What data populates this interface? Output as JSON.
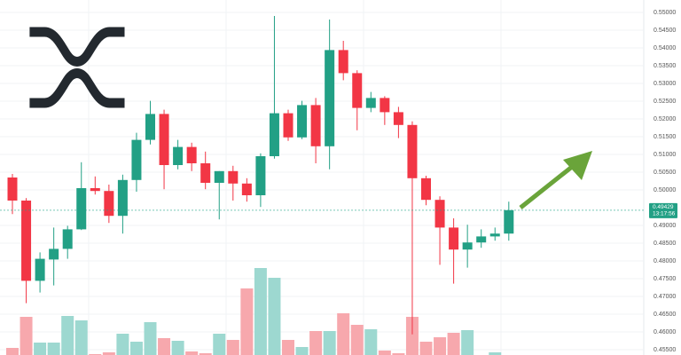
{
  "chart_data": {
    "type": "candlestick",
    "open": [
      0.5035,
      0.497,
      0.4744,
      0.4804,
      0.4834,
      0.4889,
      0.5005,
      0.4997,
      0.4927,
      0.5028,
      0.5141,
      0.5214,
      0.507,
      0.5121,
      0.5075,
      0.502,
      0.5053,
      0.5018,
      0.4985,
      0.5095,
      0.5216,
      0.5148,
      0.5239,
      0.5123,
      0.5394,
      0.5329,
      0.5231,
      0.5259,
      0.5219,
      0.5183,
      0.5033,
      0.4972,
      0.4894,
      0.4832,
      0.4852,
      0.4869,
      0.4877
    ],
    "high": [
      0.5045,
      0.4977,
      0.4824,
      0.4894,
      0.4899,
      0.5078,
      0.5038,
      0.5015,
      0.5043,
      0.5161,
      0.5251,
      0.5226,
      0.5141,
      0.5133,
      0.5108,
      0.5053,
      0.5068,
      0.5033,
      0.5103,
      0.549,
      0.5226,
      0.5251,
      0.5259,
      0.548,
      0.542,
      0.5337,
      0.5276,
      0.5264,
      0.5234,
      0.5193,
      0.504,
      0.4982,
      0.492,
      0.4902,
      0.4889,
      0.4894,
      0.4967
    ],
    "low": [
      0.4932,
      0.4681,
      0.4711,
      0.4731,
      0.4806,
      0.4887,
      0.4987,
      0.4907,
      0.4877,
      0.4995,
      0.5128,
      0.5002,
      0.5058,
      0.5053,
      0.5002,
      0.4917,
      0.497,
      0.4967,
      0.4952,
      0.5088,
      0.5138,
      0.5143,
      0.5075,
      0.5058,
      0.5309,
      0.5168,
      0.5219,
      0.5183,
      0.5146,
      0.4593,
      0.4957,
      0.4789,
      0.4736,
      0.4781,
      0.4837,
      0.4857,
      0.4857
    ],
    "close": [
      0.497,
      0.4744,
      0.4806,
      0.4834,
      0.4889,
      0.5005,
      0.4997,
      0.4927,
      0.5028,
      0.5141,
      0.5214,
      0.507,
      0.5121,
      0.5075,
      0.502,
      0.5053,
      0.5018,
      0.4985,
      0.5095,
      0.5216,
      0.5148,
      0.5239,
      0.5123,
      0.5394,
      0.5329,
      0.5231,
      0.5259,
      0.5219,
      0.5183,
      0.5033,
      0.4972,
      0.4894,
      0.4832,
      0.4852,
      0.4869,
      0.4877,
      0.4943
    ],
    "volume": [
      8,
      43,
      14,
      14,
      44,
      39,
      1,
      3,
      24,
      15,
      37,
      19,
      16,
      4,
      2,
      24,
      17,
      75,
      98,
      87,
      17,
      9,
      27,
      27,
      47,
      34,
      29,
      5,
      2,
      43,
      15,
      20,
      25,
      28,
      0,
      3,
      0
    ],
    "up_color": "#22a085",
    "down_color": "#f23645",
    "volume_up_color": "#9dd8d0",
    "volume_down_color": "#f7a8ad",
    "ylim": [
      0.4535,
      0.5535
    ],
    "yticks": [
      {
        "value": 0.55,
        "label": "0.55000"
      },
      {
        "value": 0.545,
        "label": "0.54500"
      },
      {
        "value": 0.54,
        "label": "0.54000"
      },
      {
        "value": 0.535,
        "label": "0.53500"
      },
      {
        "value": 0.53,
        "label": "0.53000"
      },
      {
        "value": 0.525,
        "label": "0.52500"
      },
      {
        "value": 0.52,
        "label": "0.52000"
      },
      {
        "value": 0.515,
        "label": "0.51500"
      },
      {
        "value": 0.51,
        "label": "0.51000"
      },
      {
        "value": 0.505,
        "label": "0.50500"
      },
      {
        "value": 0.5,
        "label": "0.50000"
      },
      {
        "value": 0.49,
        "label": "0.49000"
      },
      {
        "value": 0.485,
        "label": "0.48500"
      },
      {
        "value": 0.48,
        "label": "0.48000"
      },
      {
        "value": 0.475,
        "label": "0.47500"
      },
      {
        "value": 0.47,
        "label": "0.47000"
      },
      {
        "value": 0.465,
        "label": "0.46500"
      },
      {
        "value": 0.46,
        "label": "0.46000"
      },
      {
        "value": 0.455,
        "label": "0.45500"
      }
    ],
    "last_price": 0.49429,
    "countdown": "13:17:56",
    "grid": true
  }
}
